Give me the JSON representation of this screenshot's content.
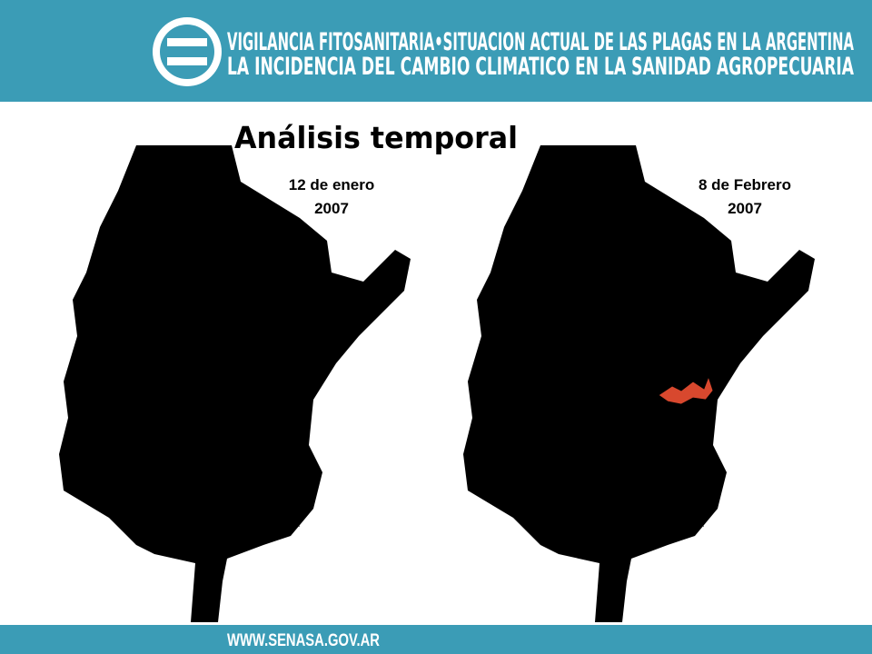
{
  "header": {
    "lines": [
      "VIGILANCIA FITOSANITARIA•SITUACION ACTUAL DE LAS PLAGAS EN LA ARGENTINA",
      "LA INCIDENCIA DEL CAMBIO CLIMATICO EN LA SANIDAD AGROPECUARIA"
    ]
  },
  "title": "Análisis temporal",
  "maps": [
    {
      "label": [
        "12 de enero",
        "2007"
      ]
    },
    {
      "label": [
        "8 de Febrero",
        "2007"
      ]
    }
  ],
  "footer": "WWW.SENASA.GOV.AR"
}
